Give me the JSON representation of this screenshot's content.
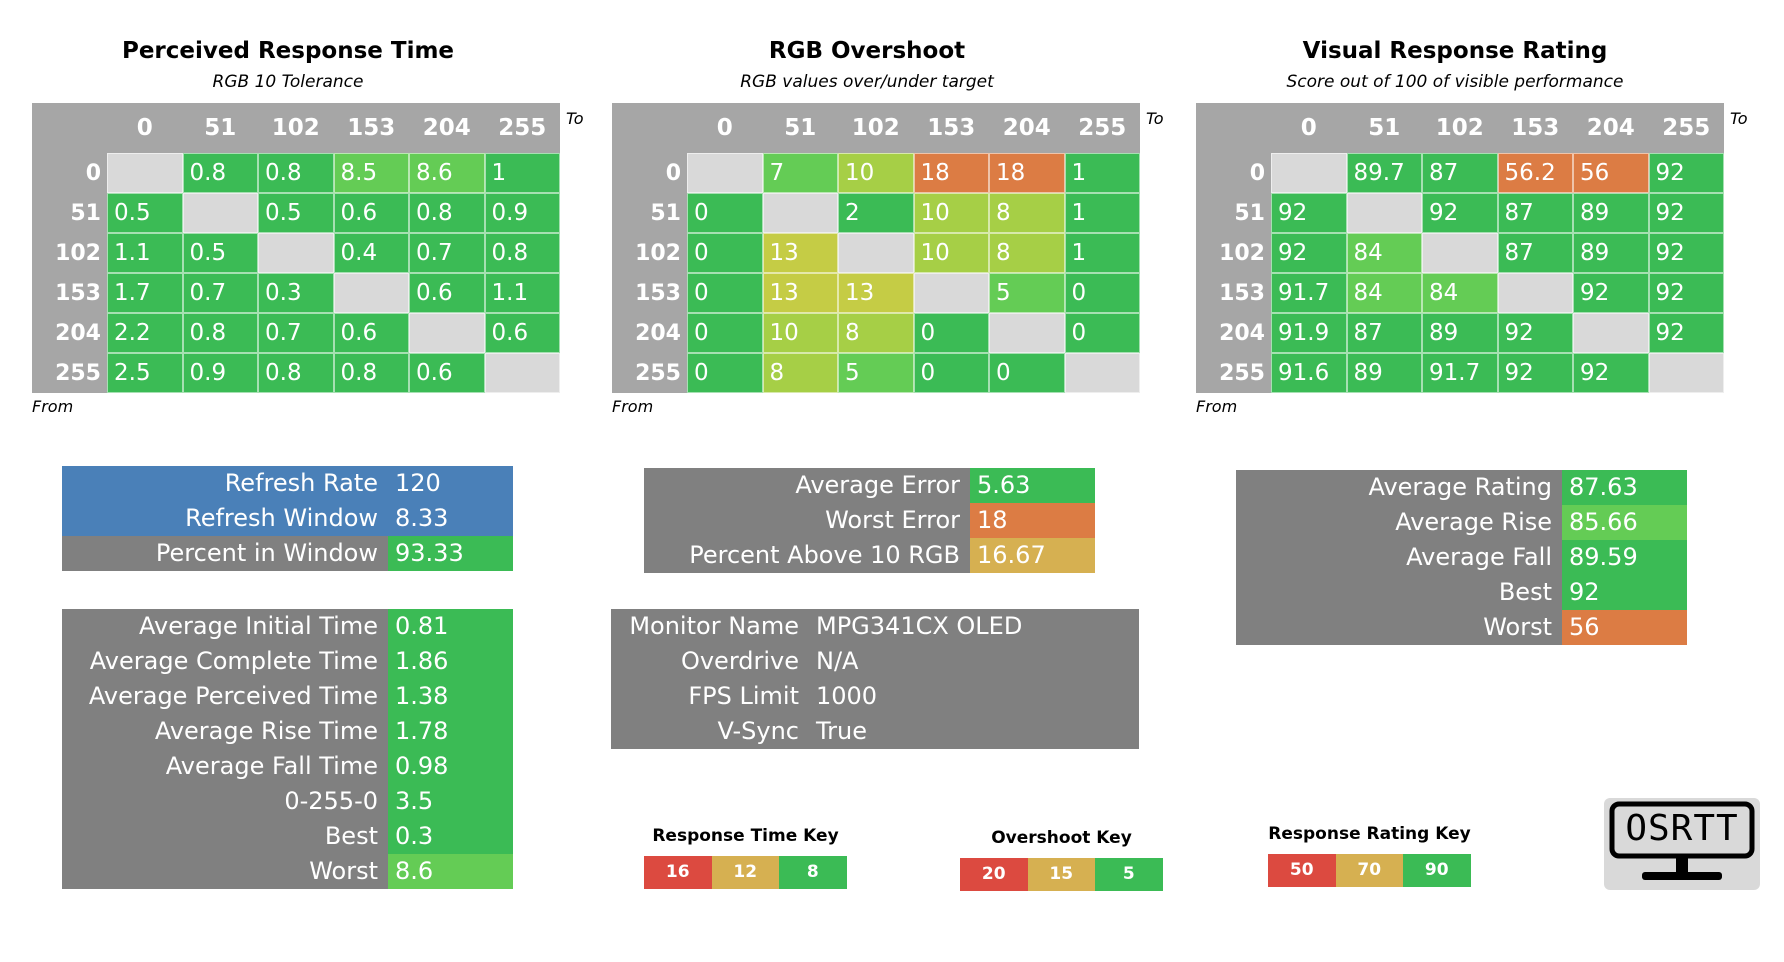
{
  "colors": {
    "grid_bg": "#a6a6a6",
    "diag": "#d9d9d9",
    "green": "#3bbb55",
    "lime": "#64cc55",
    "yellowgreen": "#a6cf46",
    "olive": "#c5cc45",
    "orange": "#dc7c44",
    "tan": "#d6b051",
    "red": "#dc4a40",
    "blue": "#4a80b8",
    "gray": "#808080"
  },
  "matrices": [
    {
      "title": "Perceived Response Time",
      "subtitle": "RGB 10 Tolerance",
      "to_label": "To",
      "from_label": "From",
      "headers": [
        "0",
        "51",
        "102",
        "153",
        "204",
        "255"
      ],
      "rows": [
        {
          "label": "0",
          "cells": [
            [
              "",
              "diag"
            ],
            [
              "0.8",
              "green"
            ],
            [
              "0.8",
              "green"
            ],
            [
              "8.5",
              "lime"
            ],
            [
              "8.6",
              "lime"
            ],
            [
              "1",
              "green"
            ]
          ]
        },
        {
          "label": "51",
          "cells": [
            [
              "0.5",
              "green"
            ],
            [
              "",
              "diag"
            ],
            [
              "0.5",
              "green"
            ],
            [
              "0.6",
              "green"
            ],
            [
              "0.8",
              "green"
            ],
            [
              "0.9",
              "green"
            ]
          ]
        },
        {
          "label": "102",
          "cells": [
            [
              "1.1",
              "green"
            ],
            [
              "0.5",
              "green"
            ],
            [
              "",
              "diag"
            ],
            [
              "0.4",
              "green"
            ],
            [
              "0.7",
              "green"
            ],
            [
              "0.8",
              "green"
            ]
          ]
        },
        {
          "label": "153",
          "cells": [
            [
              "1.7",
              "green"
            ],
            [
              "0.7",
              "green"
            ],
            [
              "0.3",
              "green"
            ],
            [
              "",
              "diag"
            ],
            [
              "0.6",
              "green"
            ],
            [
              "1.1",
              "green"
            ]
          ]
        },
        {
          "label": "204",
          "cells": [
            [
              "2.2",
              "green"
            ],
            [
              "0.8",
              "green"
            ],
            [
              "0.7",
              "green"
            ],
            [
              "0.6",
              "green"
            ],
            [
              "",
              "diag"
            ],
            [
              "0.6",
              "green"
            ]
          ]
        },
        {
          "label": "255",
          "cells": [
            [
              "2.5",
              "green"
            ],
            [
              "0.9",
              "green"
            ],
            [
              "0.8",
              "green"
            ],
            [
              "0.8",
              "green"
            ],
            [
              "0.6",
              "green"
            ],
            [
              "",
              "diag"
            ]
          ]
        }
      ]
    },
    {
      "title": "RGB Overshoot",
      "subtitle": "RGB values over/under target",
      "to_label": "To",
      "from_label": "From",
      "headers": [
        "0",
        "51",
        "102",
        "153",
        "204",
        "255"
      ],
      "rows": [
        {
          "label": "0",
          "cells": [
            [
              "",
              "diag"
            ],
            [
              "7",
              "lime"
            ],
            [
              "10",
              "yellowgreen"
            ],
            [
              "18",
              "orange"
            ],
            [
              "18",
              "orange"
            ],
            [
              "1",
              "green"
            ]
          ]
        },
        {
          "label": "51",
          "cells": [
            [
              "0",
              "green"
            ],
            [
              "",
              "diag"
            ],
            [
              "2",
              "green"
            ],
            [
              "10",
              "yellowgreen"
            ],
            [
              "8",
              "yellowgreen"
            ],
            [
              "1",
              "green"
            ]
          ]
        },
        {
          "label": "102",
          "cells": [
            [
              "0",
              "green"
            ],
            [
              "13",
              "olive"
            ],
            [
              "",
              "diag"
            ],
            [
              "10",
              "yellowgreen"
            ],
            [
              "8",
              "yellowgreen"
            ],
            [
              "1",
              "green"
            ]
          ]
        },
        {
          "label": "153",
          "cells": [
            [
              "0",
              "green"
            ],
            [
              "13",
              "olive"
            ],
            [
              "13",
              "olive"
            ],
            [
              "",
              "diag"
            ],
            [
              "5",
              "lime"
            ],
            [
              "0",
              "green"
            ]
          ]
        },
        {
          "label": "204",
          "cells": [
            [
              "0",
              "green"
            ],
            [
              "10",
              "yellowgreen"
            ],
            [
              "8",
              "yellowgreen"
            ],
            [
              "0",
              "green"
            ],
            [
              "",
              "diag"
            ],
            [
              "0",
              "green"
            ]
          ]
        },
        {
          "label": "255",
          "cells": [
            [
              "0",
              "green"
            ],
            [
              "8",
              "yellowgreen"
            ],
            [
              "5",
              "lime"
            ],
            [
              "0",
              "green"
            ],
            [
              "0",
              "green"
            ],
            [
              "",
              "diag"
            ]
          ]
        }
      ]
    },
    {
      "title": "Visual Response Rating",
      "subtitle": "Score out of 100 of visible performance",
      "to_label": "To",
      "from_label": "From",
      "headers": [
        "0",
        "51",
        "102",
        "153",
        "204",
        "255"
      ],
      "rows": [
        {
          "label": "0",
          "cells": [
            [
              "",
              "diag"
            ],
            [
              "89.7",
              "green"
            ],
            [
              "87",
              "green"
            ],
            [
              "56.2",
              "orange"
            ],
            [
              "56",
              "orange"
            ],
            [
              "92",
              "green"
            ]
          ]
        },
        {
          "label": "51",
          "cells": [
            [
              "92",
              "green"
            ],
            [
              "",
              "diag"
            ],
            [
              "92",
              "green"
            ],
            [
              "87",
              "green"
            ],
            [
              "89",
              "green"
            ],
            [
              "92",
              "green"
            ]
          ]
        },
        {
          "label": "102",
          "cells": [
            [
              "92",
              "green"
            ],
            [
              "84",
              "lime"
            ],
            [
              "",
              "diag"
            ],
            [
              "87",
              "green"
            ],
            [
              "89",
              "green"
            ],
            [
              "92",
              "green"
            ]
          ]
        },
        {
          "label": "153",
          "cells": [
            [
              "91.7",
              "green"
            ],
            [
              "84",
              "lime"
            ],
            [
              "84",
              "lime"
            ],
            [
              "",
              "diag"
            ],
            [
              "92",
              "green"
            ],
            [
              "92",
              "green"
            ]
          ]
        },
        {
          "label": "204",
          "cells": [
            [
              "91.9",
              "green"
            ],
            [
              "87",
              "green"
            ],
            [
              "89",
              "green"
            ],
            [
              "92",
              "green"
            ],
            [
              "",
              "diag"
            ],
            [
              "92",
              "green"
            ]
          ]
        },
        {
          "label": "255",
          "cells": [
            [
              "91.6",
              "green"
            ],
            [
              "89",
              "green"
            ],
            [
              "91.7",
              "green"
            ],
            [
              "92",
              "green"
            ],
            [
              "92",
              "green"
            ],
            [
              "",
              "diag"
            ]
          ]
        }
      ]
    }
  ],
  "refresh": [
    {
      "label": "Refresh Rate",
      "value": "120",
      "bg": "blue",
      "vbg": "blue"
    },
    {
      "label": "Refresh Window",
      "value": "8.33",
      "bg": "blue",
      "vbg": "blue"
    },
    {
      "label": "Percent in Window",
      "value": "93.33",
      "bg": "gray",
      "vbg": "green"
    }
  ],
  "times": [
    {
      "label": "Average Initial Time",
      "value": "0.81",
      "vbg": "green"
    },
    {
      "label": "Average Complete Time",
      "value": "1.86",
      "vbg": "green"
    },
    {
      "label": "Average Perceived Time",
      "value": "1.38",
      "vbg": "green"
    },
    {
      "label": "Average Rise Time",
      "value": "1.78",
      "vbg": "green"
    },
    {
      "label": "Average Fall Time",
      "value": "0.98",
      "vbg": "green"
    },
    {
      "label": "0-255-0",
      "value": "3.5",
      "vbg": "green"
    },
    {
      "label": "Best",
      "value": "0.3",
      "vbg": "green"
    },
    {
      "label": "Worst",
      "value": "8.6",
      "vbg": "lime"
    }
  ],
  "overshoot_stats": [
    {
      "label": "Average Error",
      "value": "5.63",
      "vbg": "green"
    },
    {
      "label": "Worst Error",
      "value": "18",
      "vbg": "orange"
    },
    {
      "label": "Percent Above 10 RGB",
      "value": "16.67",
      "vbg": "tan"
    }
  ],
  "monitor": [
    {
      "label": "Monitor Name",
      "value": "MPG341CX OLED"
    },
    {
      "label": "Overdrive",
      "value": "N/A"
    },
    {
      "label": "FPS Limit",
      "value": "1000"
    },
    {
      "label": "V-Sync",
      "value": "True"
    }
  ],
  "rating_stats": [
    {
      "label": "Average Rating",
      "value": "87.63",
      "vbg": "green"
    },
    {
      "label": "Average Rise",
      "value": "85.66",
      "vbg": "lime"
    },
    {
      "label": "Average Fall",
      "value": "89.59",
      "vbg": "green"
    },
    {
      "label": "Best",
      "value": "92",
      "vbg": "green"
    },
    {
      "label": "Worst",
      "value": "56",
      "vbg": "orange"
    }
  ],
  "keys": [
    {
      "title": "Response Time Key",
      "items": [
        [
          "16",
          "red"
        ],
        [
          "12",
          "tan"
        ],
        [
          "8",
          "green"
        ]
      ]
    },
    {
      "title": "Overshoot Key",
      "items": [
        [
          "20",
          "red"
        ],
        [
          "15",
          "tan"
        ],
        [
          "5",
          "green"
        ]
      ]
    },
    {
      "title": "Response Rating Key",
      "items": [
        [
          "50",
          "red"
        ],
        [
          "70",
          "tan"
        ],
        [
          "90",
          "green"
        ]
      ]
    }
  ],
  "logo": {
    "text": "OSRTT",
    "icon": "monitor-icon"
  }
}
